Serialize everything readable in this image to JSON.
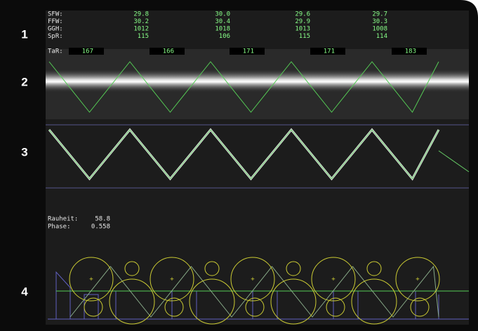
{
  "panel_labels": [
    "1",
    "2",
    "3",
    "4"
  ],
  "measurements": {
    "rows": [
      {
        "label": "SFW:",
        "values": [
          "29.8",
          "30.0",
          "29.6",
          "29.7"
        ]
      },
      {
        "label": "FFW:",
        "values": [
          "30.2",
          "30.4",
          "29.9",
          "30.3"
        ]
      },
      {
        "label": "GGH:",
        "values": [
          "1012",
          "1018",
          "1013",
          "1008"
        ]
      },
      {
        "label": "SpR:",
        "values": [
          "115",
          "106",
          "115",
          "114"
        ]
      }
    ],
    "tar": {
      "label": "TaR:",
      "values": [
        "167",
        "166",
        "171",
        "171",
        "183"
      ]
    }
  },
  "readouts": [
    {
      "label": "Rauheit:",
      "value": "58.8"
    },
    {
      "label": "Phase:",
      "value": "0.558"
    }
  ]
}
